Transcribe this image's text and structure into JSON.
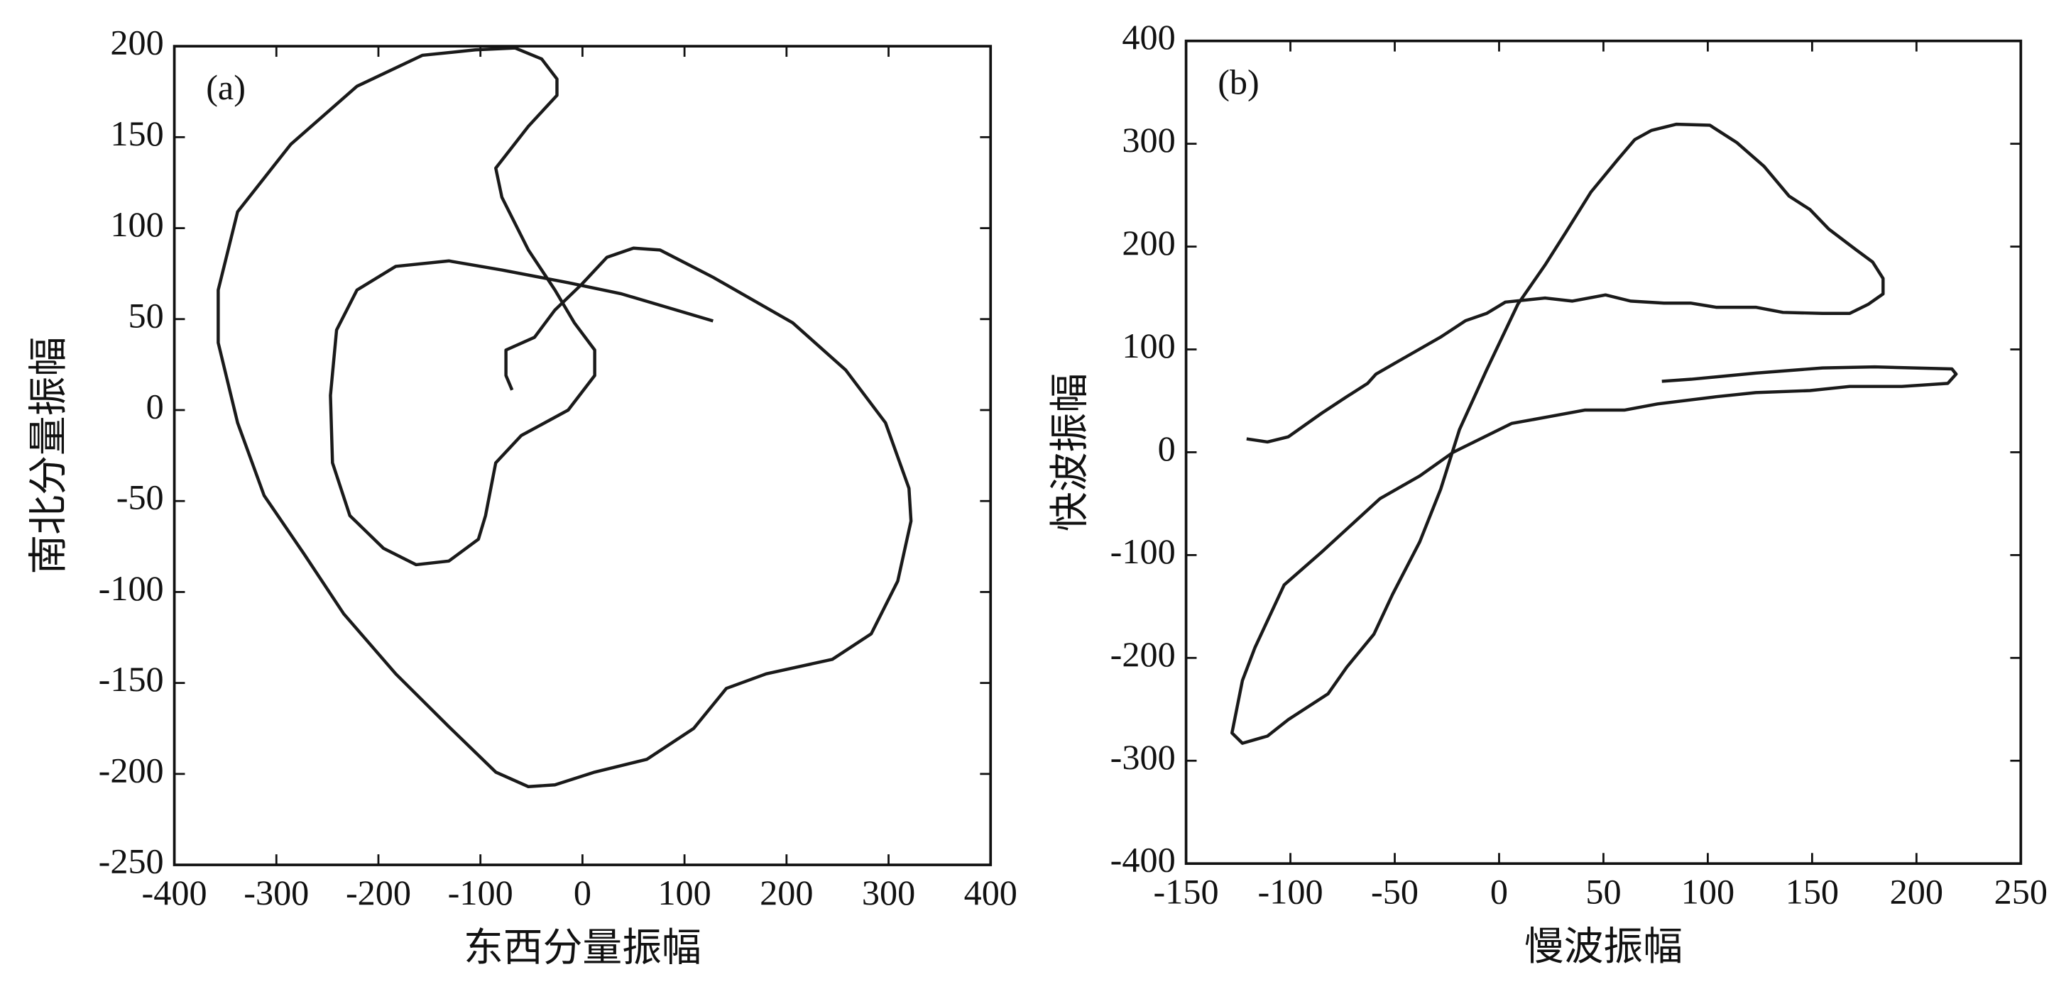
{
  "chart_data": [
    {
      "type": "line",
      "annotation": "(a)",
      "xlabel": "东西分量振幅",
      "ylabel": "南北分量振幅",
      "xlim": [
        -400,
        400
      ],
      "ylim": [
        -250,
        200
      ],
      "xticks": [
        -400,
        -300,
        -200,
        -100,
        0,
        100,
        200,
        300,
        400
      ],
      "yticks": [
        -250,
        -200,
        -150,
        -100,
        -50,
        0,
        50,
        100,
        150,
        200
      ],
      "color": "#1a1a1a",
      "x": [
        128,
        37.5,
        -14,
        -79,
        -131,
        -183,
        -221,
        -241,
        -247,
        -245,
        -228,
        -195,
        -163,
        -131,
        -102,
        -95,
        -85,
        -60,
        -14,
        12,
        12,
        -8,
        -27,
        -53,
        -79,
        -85,
        -53,
        -25,
        -25,
        -40,
        -66,
        -105,
        -157,
        -221,
        -286,
        -338,
        -357,
        -357,
        -338,
        -312,
        -273,
        -234,
        -183,
        -131,
        -85,
        -53,
        -27,
        12,
        63,
        109,
        141,
        180,
        245,
        283,
        309,
        322,
        320,
        297,
        258,
        206,
        128,
        76,
        50,
        24,
        -1,
        -27,
        -47,
        -75,
        -75,
        -69
      ],
      "values": [
        49,
        64,
        70,
        77,
        82,
        79,
        66,
        44,
        8,
        -29,
        -58,
        -76,
        -85,
        -83,
        -71,
        -58,
        -29,
        -14,
        0,
        19,
        33,
        48,
        66,
        88,
        117,
        133,
        156,
        173,
        182,
        193,
        199,
        198,
        195,
        178,
        146,
        109,
        66,
        37,
        -7,
        -47,
        -79,
        -112,
        -145,
        -174,
        -199,
        -207,
        -206,
        -199,
        -192,
        -175,
        -153,
        -145,
        -137,
        -123,
        -94,
        -61,
        -43,
        -7,
        22,
        48,
        73,
        88,
        89,
        84,
        69,
        55,
        40,
        33,
        19,
        11
      ]
    },
    {
      "type": "line",
      "annotation": "(b)",
      "xlabel": "慢波振幅",
      "ylabel": "快波振幅",
      "xlim": [
        -150,
        250
      ],
      "ylim": [
        -400,
        400
      ],
      "xticks": [
        -150,
        -100,
        -50,
        0,
        50,
        100,
        150,
        200,
        250
      ],
      "yticks": [
        -400,
        -300,
        -200,
        -100,
        0,
        100,
        200,
        300,
        400
      ],
      "color": "#1a1a1a",
      "x": [
        -121,
        -111,
        -101,
        -85,
        -73,
        -63,
        -59,
        -47,
        -28,
        -16,
        -6,
        3,
        22,
        35,
        51,
        63,
        79,
        92,
        104,
        123,
        136,
        155,
        168,
        177,
        184,
        184,
        179,
        171,
        158,
        149,
        139,
        127,
        114,
        101,
        85,
        73,
        65,
        57,
        44,
        32,
        22,
        9,
        -6,
        -19,
        -28,
        -38,
        -51,
        -60,
        -73,
        -82,
        -101,
        -111,
        -123,
        -128,
        -123,
        -117,
        -103,
        -85,
        -57,
        -38,
        -22,
        6,
        25,
        41,
        60,
        76,
        104,
        123,
        149,
        168,
        193,
        215,
        219,
        217,
        180,
        155,
        123,
        92,
        78
      ],
      "values": [
        13,
        10,
        15,
        38,
        54,
        67,
        76,
        90,
        112,
        128,
        135,
        146,
        150,
        147,
        153,
        147,
        145,
        145,
        141,
        141,
        136,
        135,
        135,
        144,
        154,
        169,
        185,
        197,
        217,
        236,
        249,
        278,
        301,
        318,
        319,
        313,
        304,
        285,
        253,
        214,
        182,
        144,
        80,
        22,
        -36,
        -87,
        -138,
        -177,
        -209,
        -235,
        -260,
        -276,
        -283,
        -273,
        -222,
        -190,
        -129,
        -97,
        -45,
        -23,
        0,
        28,
        35,
        41,
        41,
        47,
        54,
        58,
        60,
        64,
        64,
        67,
        76,
        81,
        83,
        82,
        77,
        71,
        69
      ]
    }
  ]
}
